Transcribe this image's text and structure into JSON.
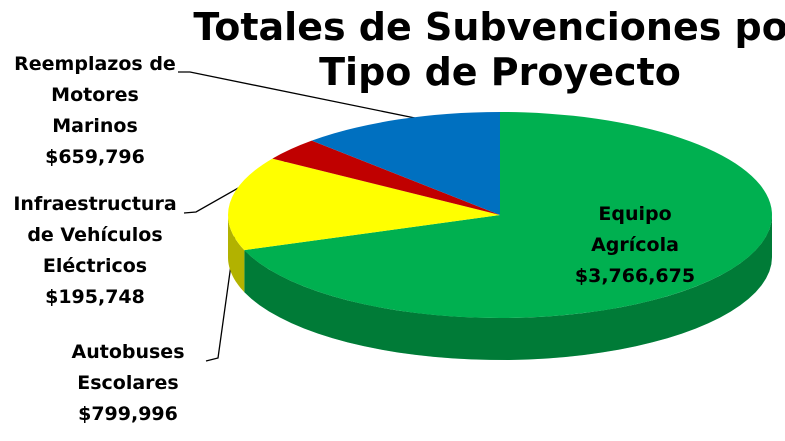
{
  "chart_data": {
    "type": "pie",
    "title": "Totales de Subvenciones por Tipo de Proyecto",
    "three_d": true,
    "categories": [
      "Equipo Agrícola",
      "Autobuses Escolares",
      "Infraestructura de Vehículos Eléctricos",
      "Reemplazos de Motores Marinos"
    ],
    "values": [
      3766675,
      799996,
      195748,
      659796
    ],
    "value_labels": [
      "$3,766,675",
      "$799,996",
      "$195,748",
      "$659,796"
    ],
    "colors": [
      "#00b050",
      "#ffff00",
      "#c00000",
      "#0070c0"
    ]
  }
}
